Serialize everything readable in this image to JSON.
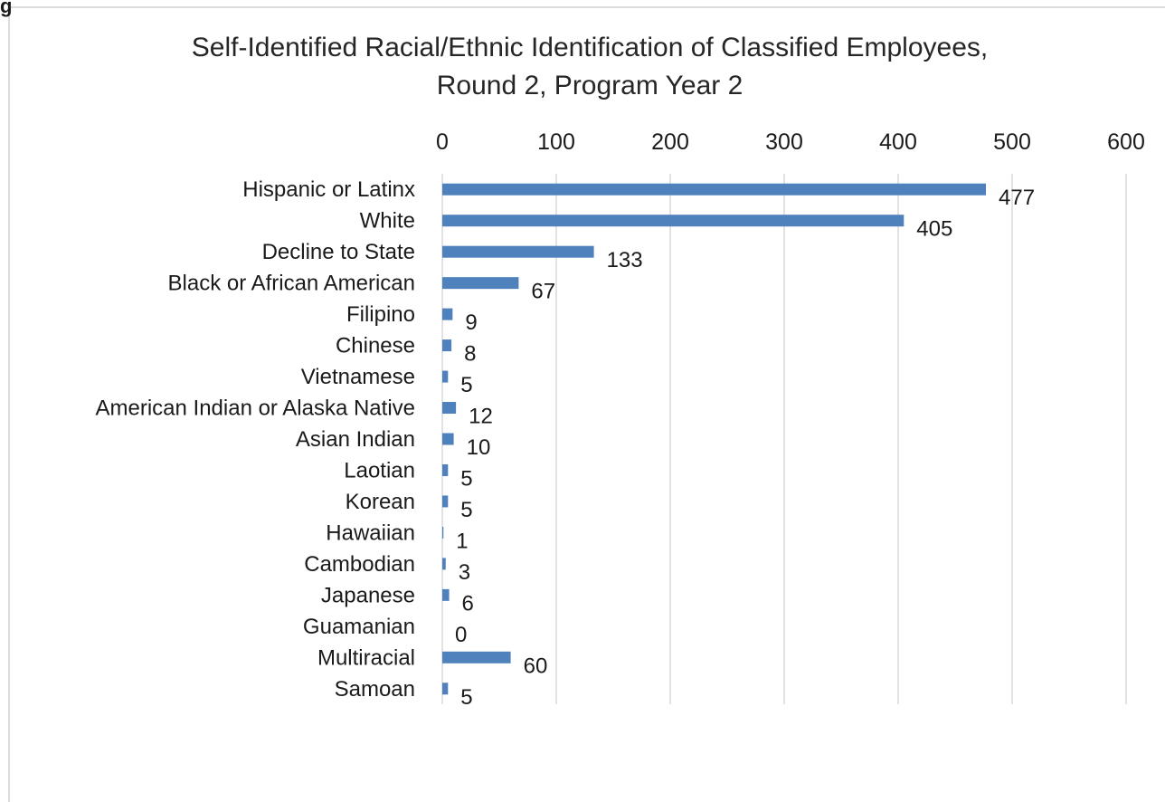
{
  "chart_data": {
    "type": "bar",
    "orientation": "horizontal",
    "title": "Self-Identified Racial/Ethnic Identification  of Classified Employees,",
    "subtitle": "Round 2, Program Year 2",
    "corner_label": "g",
    "categories": [
      "Hispanic or Latinx",
      "White",
      "Decline to State",
      "Black or African American",
      "Filipino",
      "Chinese",
      "Vietnamese",
      "American Indian or Alaska Native",
      "Asian Indian",
      "Laotian",
      "Korean",
      "Hawaiian",
      "Cambodian",
      "Japanese",
      "Guamanian",
      "Multiracial",
      "Samoan"
    ],
    "values": [
      477,
      405,
      133,
      67,
      9,
      8,
      5,
      12,
      10,
      5,
      5,
      1,
      3,
      6,
      0,
      60,
      5
    ],
    "xlim": [
      0,
      600
    ],
    "xticks": [
      0,
      100,
      200,
      300,
      400,
      500,
      600
    ],
    "xaxis_position": "top",
    "grid": true,
    "legend": "none",
    "bar_color": "#4f81bd",
    "grid_color": "#d9d9d9"
  }
}
